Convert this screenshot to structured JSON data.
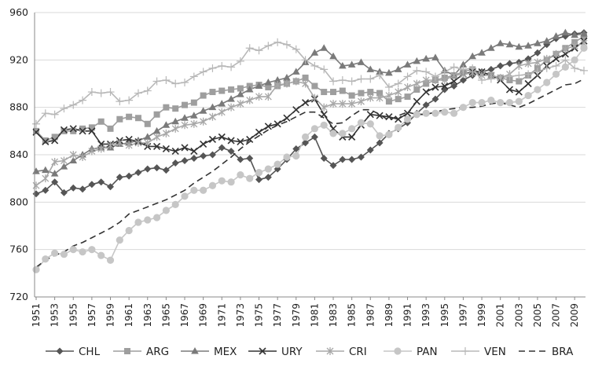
{
  "chart_data": {
    "type": "line",
    "title": "",
    "xlabel": "",
    "ylabel": "",
    "ylim": [
      720,
      960
    ],
    "yticks": [
      720,
      760,
      800,
      840,
      880,
      920,
      960
    ],
    "xrange": [
      1951,
      2010
    ],
    "xticks": [
      1951,
      1953,
      1955,
      1957,
      1959,
      1961,
      1963,
      1965,
      1967,
      1969,
      1971,
      1973,
      1975,
      1977,
      1979,
      1981,
      1983,
      1985,
      1987,
      1989,
      1991,
      1993,
      1995,
      1997,
      1999,
      2001,
      2003,
      2005,
      2007,
      2009
    ],
    "grid": "horizontal",
    "legend": "bottom",
    "x": [
      1951,
      1952,
      1953,
      1954,
      1955,
      1956,
      1957,
      1958,
      1959,
      1960,
      1961,
      1962,
      1963,
      1964,
      1965,
      1966,
      1967,
      1968,
      1969,
      1970,
      1971,
      1972,
      1973,
      1974,
      1975,
      1976,
      1977,
      1978,
      1979,
      1980,
      1981,
      1982,
      1983,
      1984,
      1985,
      1986,
      1987,
      1988,
      1989,
      1990,
      1991,
      1992,
      1993,
      1994,
      1995,
      1996,
      1997,
      1998,
      1999,
      2000,
      2001,
      2002,
      2003,
      2004,
      2005,
      2006,
      2007,
      2008,
      2009,
      2010
    ],
    "series": [
      {
        "name": "CHL",
        "color": "#555555",
        "marker": "diamond",
        "dash": "",
        "values": [
          807,
          810,
          817,
          808,
          812,
          811,
          815,
          817,
          813,
          821,
          822,
          825,
          828,
          829,
          827,
          833,
          835,
          837,
          839,
          840,
          846,
          843,
          836,
          837,
          819,
          821,
          828,
          836,
          845,
          850,
          855,
          837,
          831,
          836,
          836,
          838,
          844,
          850,
          858,
          862,
          867,
          875,
          882,
          887,
          895,
          898,
          903,
          907,
          910,
          912,
          915,
          917,
          918,
          921,
          926,
          933,
          938,
          940,
          942,
          943
        ]
      },
      {
        "name": "ARG",
        "color": "#9e9e9e",
        "marker": "square",
        "dash": "",
        "values": [
          860,
          852,
          855,
          860,
          860,
          862,
          863,
          868,
          862,
          870,
          872,
          871,
          866,
          874,
          880,
          879,
          882,
          884,
          890,
          893,
          894,
          895,
          896,
          898,
          899,
          897,
          898,
          900,
          902,
          905,
          898,
          893,
          893,
          894,
          890,
          892,
          893,
          892,
          885,
          887,
          889,
          895,
          900,
          903,
          905,
          907,
          910,
          912,
          909,
          907,
          905,
          903,
          902,
          907,
          913,
          920,
          925,
          930,
          935,
          940
        ]
      },
      {
        "name": "MEX",
        "color": "#7a7a7a",
        "marker": "triangle",
        "dash": "",
        "values": [
          826,
          827,
          824,
          830,
          835,
          840,
          845,
          846,
          846,
          849,
          850,
          852,
          855,
          860,
          865,
          868,
          871,
          873,
          877,
          880,
          883,
          887,
          891,
          895,
          898,
          901,
          903,
          905,
          910,
          918,
          926,
          930,
          923,
          915,
          916,
          918,
          912,
          910,
          909,
          912,
          916,
          919,
          921,
          922,
          911,
          907,
          916,
          923,
          926,
          930,
          934,
          933,
          931,
          932,
          934,
          936,
          940,
          943,
          941,
          942
        ]
      },
      {
        "name": "URY",
        "color": "#333333",
        "marker": "x",
        "dash": "",
        "values": [
          859,
          851,
          852,
          861,
          862,
          860,
          860,
          849,
          849,
          852,
          853,
          851,
          847,
          847,
          845,
          843,
          846,
          843,
          849,
          853,
          855,
          852,
          851,
          853,
          859,
          864,
          866,
          871,
          878,
          884,
          887,
          874,
          862,
          855,
          855,
          865,
          874,
          873,
          872,
          870,
          875,
          885,
          893,
          897,
          898,
          902,
          908,
          910,
          910,
          907,
          903,
          895,
          893,
          900,
          907,
          915,
          921,
          925,
          930,
          936
        ]
      },
      {
        "name": "CRI",
        "color": "#a8a8a8",
        "marker": "asterisk",
        "dash": "",
        "values": [
          814,
          820,
          834,
          835,
          840,
          838,
          843,
          845,
          848,
          850,
          848,
          850,
          850,
          855,
          858,
          862,
          865,
          866,
          868,
          872,
          876,
          880,
          883,
          886,
          889,
          889,
          899,
          900,
          902,
          900,
          888,
          880,
          883,
          883,
          883,
          885,
          888,
          888,
          890,
          893,
          897,
          900,
          903,
          903,
          903,
          907,
          908,
          909,
          907,
          907,
          905,
          908,
          915,
          917,
          918,
          921,
          925,
          929,
          932,
          934
        ]
      },
      {
        "name": "PAN",
        "color": "#c6c6c6",
        "marker": "circle",
        "dash": "",
        "values": [
          743,
          752,
          757,
          756,
          760,
          758,
          760,
          755,
          751,
          768,
          776,
          783,
          785,
          787,
          793,
          798,
          805,
          810,
          810,
          814,
          818,
          817,
          823,
          820,
          825,
          828,
          832,
          838,
          839,
          855,
          862,
          865,
          858,
          858,
          862,
          867,
          866,
          856,
          857,
          863,
          870,
          874,
          875,
          875,
          876,
          875,
          880,
          884,
          884,
          886,
          884,
          884,
          885,
          890,
          895,
          901,
          908,
          914,
          920,
          930
        ]
      },
      {
        "name": "VEN",
        "color": "#b8b8b8",
        "marker": "plus",
        "dash": "",
        "values": [
          866,
          875,
          874,
          879,
          882,
          886,
          893,
          892,
          893,
          885,
          886,
          892,
          894,
          902,
          903,
          900,
          901,
          906,
          910,
          913,
          915,
          914,
          919,
          930,
          928,
          932,
          935,
          933,
          929,
          920,
          915,
          912,
          902,
          903,
          902,
          904,
          904,
          907,
          897,
          900,
          906,
          911,
          910,
          906,
          910,
          914,
          912,
          913,
          903,
          904,
          905,
          906,
          907,
          908,
          910,
          913,
          915,
          920,
          913,
          911
        ]
      },
      {
        "name": "BRA",
        "color": "#333333",
        "marker": "none",
        "dash": "8 5",
        "values": [
          745,
          751,
          755,
          758,
          763,
          766,
          770,
          774,
          778,
          783,
          790,
          793,
          796,
          799,
          802,
          806,
          810,
          816,
          821,
          826,
          832,
          838,
          845,
          851,
          856,
          861,
          865,
          868,
          872,
          876,
          876,
          871,
          866,
          867,
          873,
          878,
          878,
          874,
          869,
          873,
          876,
          874,
          874,
          876,
          878,
          879,
          880,
          880,
          881,
          883,
          884,
          882,
          880,
          883,
          887,
          891,
          895,
          899,
          900,
          904
        ]
      }
    ]
  }
}
